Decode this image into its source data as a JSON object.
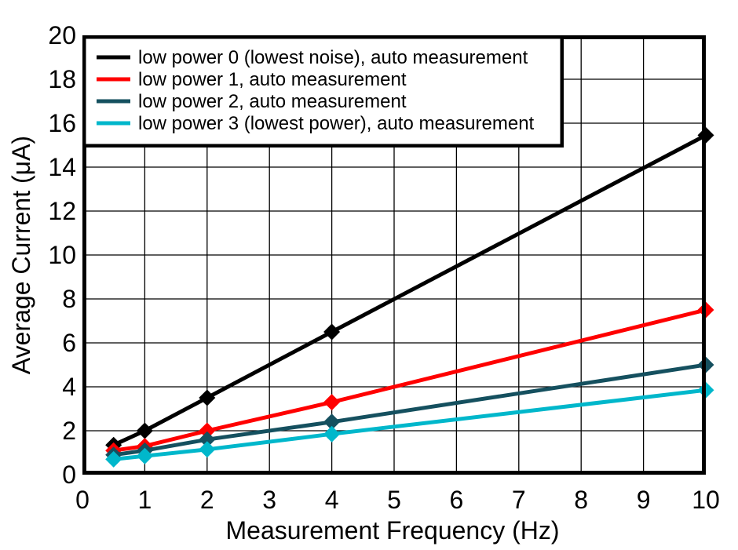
{
  "chart_data": {
    "type": "line",
    "title": "",
    "xlabel": "Measurement Frequency (Hz)",
    "ylabel": "Average Current (μA)",
    "x": [
      0.5,
      1,
      2,
      4,
      10
    ],
    "series": [
      {
        "name": "low power 0 (lowest noise), auto measurement",
        "color": "#000000",
        "values": [
          1.35,
          2.0,
          3.5,
          6.5,
          15.45
        ]
      },
      {
        "name": "low power 1, auto measurement",
        "color": "#ff0000",
        "values": [
          1.1,
          1.3,
          2.0,
          3.3,
          7.5
        ]
      },
      {
        "name": "low power 2, auto measurement",
        "color": "#15505f",
        "values": [
          0.9,
          1.1,
          1.6,
          2.4,
          5.0
        ]
      },
      {
        "name": "low power 3 (lowest power), auto measurement",
        "color": "#00b7cb",
        "values": [
          0.7,
          0.85,
          1.15,
          1.85,
          3.85
        ]
      }
    ],
    "xlim": [
      0,
      10
    ],
    "ylim": [
      0,
      20
    ],
    "xticks": [
      0,
      1,
      2,
      3,
      4,
      5,
      6,
      7,
      8,
      9,
      10
    ],
    "yticks": [
      0,
      2,
      4,
      6,
      8,
      10,
      12,
      14,
      16,
      18,
      20
    ],
    "grid": true,
    "grid_color": "#000000",
    "axis_color": "#000000",
    "background_color": "#ffffff",
    "legend_position": "top-left",
    "marker": "diamond"
  }
}
